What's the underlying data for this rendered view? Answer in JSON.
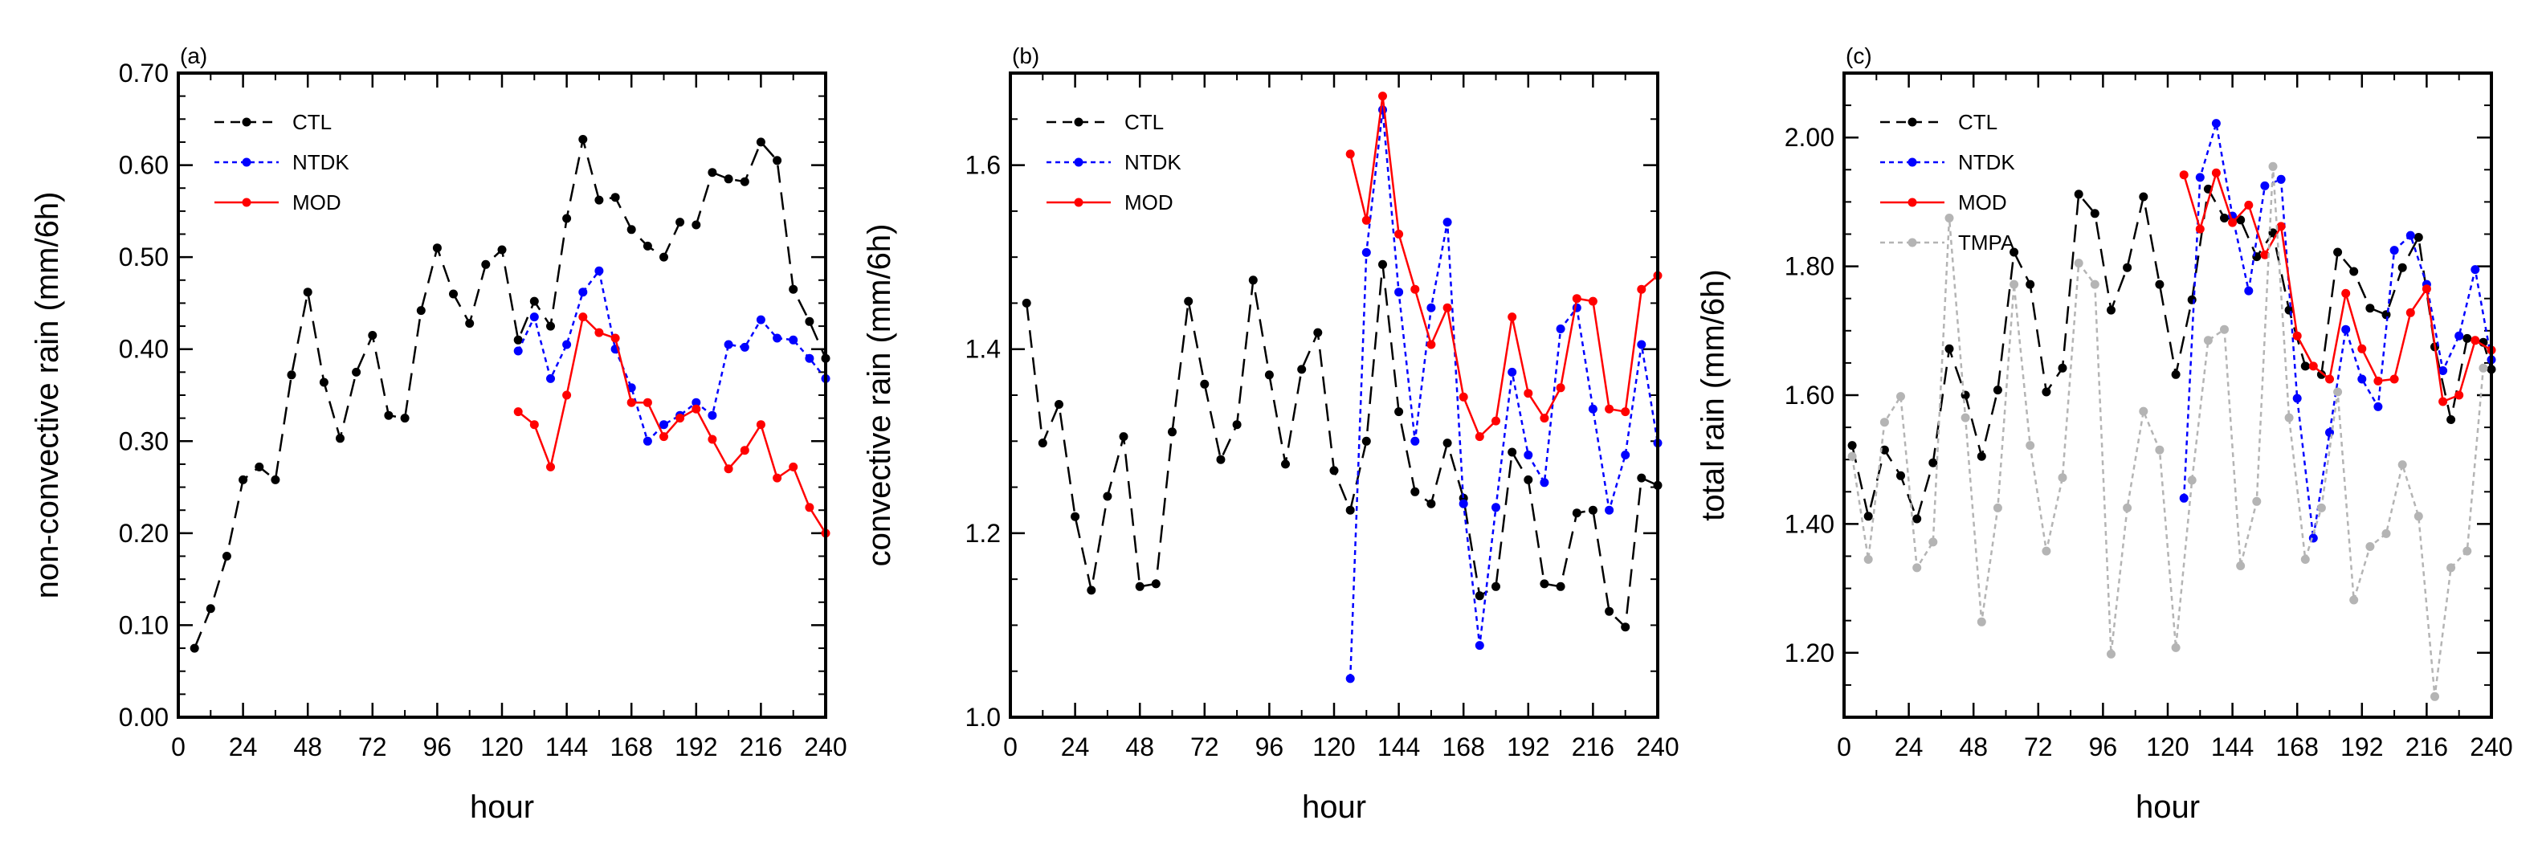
{
  "chart_data": [
    {
      "type": "line",
      "panel_label": "(a)",
      "xlabel": "hour",
      "ylabel": "non-convective rain (mm/6h)",
      "xlim": [
        0,
        240
      ],
      "ylim": [
        0.0,
        0.7
      ],
      "xticks": [
        0,
        24,
        48,
        72,
        96,
        120,
        144,
        168,
        192,
        216,
        240
      ],
      "xtick_labels": [
        "0",
        "24",
        "48",
        "72",
        "96",
        "120",
        "144",
        "168",
        "192",
        "216",
        "240"
      ],
      "yticks": [
        0.0,
        0.1,
        0.2,
        0.3,
        0.4,
        0.5,
        0.6,
        0.7
      ],
      "ytick_labels": [
        "0.00",
        "0.10",
        "0.20",
        "0.30",
        "0.40",
        "0.50",
        "0.60",
        "0.70"
      ],
      "legend_position": "top-left",
      "series": [
        {
          "name": "CTL",
          "color": "#000000",
          "dash": "long-dash",
          "x": [
            6,
            12,
            18,
            24,
            30,
            36,
            42,
            48,
            54,
            60,
            66,
            72,
            78,
            84,
            90,
            96,
            102,
            108,
            114,
            120,
            126,
            132,
            138,
            144,
            150,
            156,
            162,
            168,
            174,
            180,
            186,
            192,
            198,
            204,
            210,
            216,
            222,
            228,
            234,
            240
          ],
          "values": [
            0.075,
            0.118,
            0.175,
            0.258,
            0.272,
            0.258,
            0.372,
            0.462,
            0.364,
            0.303,
            0.375,
            0.415,
            0.328,
            0.325,
            0.442,
            0.51,
            0.46,
            0.428,
            0.492,
            0.508,
            0.41,
            0.452,
            0.425,
            0.542,
            0.628,
            0.562,
            0.565,
            0.53,
            0.512,
            0.5,
            0.538,
            0.535,
            0.592,
            0.585,
            0.582,
            0.625,
            0.605,
            0.465,
            0.43,
            0.39
          ]
        },
        {
          "name": "NTDK",
          "color": "#0000ff",
          "dash": "dotted",
          "x": [
            126,
            132,
            138,
            144,
            150,
            156,
            162,
            168,
            174,
            180,
            186,
            192,
            198,
            204,
            210,
            216,
            222,
            228,
            234,
            240
          ],
          "values": [
            0.398,
            0.435,
            0.368,
            0.405,
            0.462,
            0.485,
            0.4,
            0.358,
            0.3,
            0.318,
            0.328,
            0.342,
            0.328,
            0.405,
            0.402,
            0.432,
            0.412,
            0.41,
            0.39,
            0.368
          ]
        },
        {
          "name": "MOD",
          "color": "#ff0000",
          "dash": "solid",
          "x": [
            126,
            132,
            138,
            144,
            150,
            156,
            162,
            168,
            174,
            180,
            186,
            192,
            198,
            204,
            210,
            216,
            222,
            228,
            234,
            240
          ],
          "values": [
            0.332,
            0.318,
            0.272,
            0.35,
            0.435,
            0.418,
            0.412,
            0.342,
            0.342,
            0.305,
            0.325,
            0.335,
            0.302,
            0.27,
            0.29,
            0.318,
            0.26,
            0.272,
            0.228,
            0.2
          ]
        }
      ]
    },
    {
      "type": "line",
      "panel_label": "(b)",
      "xlabel": "hour",
      "ylabel": "convective rain (mm/6h)",
      "xlim": [
        0,
        240
      ],
      "ylim": [
        1.0,
        1.7
      ],
      "xticks": [
        0,
        24,
        48,
        72,
        96,
        120,
        144,
        168,
        192,
        216,
        240
      ],
      "xtick_labels": [
        "0",
        "24",
        "48",
        "72",
        "96",
        "120",
        "144",
        "168",
        "192",
        "216",
        "240"
      ],
      "yticks": [
        1.0,
        1.2,
        1.4,
        1.6
      ],
      "ytick_labels": [
        "1.0",
        "1.2",
        "1.4",
        "1.6"
      ],
      "legend_position": "top-left",
      "series": [
        {
          "name": "CTL",
          "color": "#000000",
          "dash": "long-dash",
          "x": [
            6,
            12,
            18,
            24,
            30,
            36,
            42,
            48,
            54,
            60,
            66,
            72,
            78,
            84,
            90,
            96,
            102,
            108,
            114,
            120,
            126,
            132,
            138,
            144,
            150,
            156,
            162,
            168,
            174,
            180,
            186,
            192,
            198,
            204,
            210,
            216,
            222,
            228,
            234,
            240
          ],
          "values": [
            1.45,
            1.298,
            1.34,
            1.218,
            1.138,
            1.24,
            1.305,
            1.142,
            1.145,
            1.31,
            1.452,
            1.362,
            1.28,
            1.318,
            1.475,
            1.372,
            1.275,
            1.378,
            1.418,
            1.268,
            1.225,
            1.3,
            1.492,
            1.332,
            1.245,
            1.232,
            1.298,
            1.238,
            1.132,
            1.142,
            1.288,
            1.258,
            1.145,
            1.142,
            1.222,
            1.225,
            1.115,
            1.098,
            1.26,
            1.252
          ]
        },
        {
          "name": "NTDK",
          "color": "#0000ff",
          "dash": "dotted",
          "x": [
            126,
            132,
            138,
            144,
            150,
            156,
            162,
            168,
            174,
            180,
            186,
            192,
            198,
            204,
            210,
            216,
            222,
            228,
            234,
            240
          ],
          "values": [
            1.042,
            1.505,
            1.66,
            1.462,
            1.3,
            1.445,
            1.538,
            1.232,
            1.078,
            1.228,
            1.375,
            1.285,
            1.255,
            1.422,
            1.445,
            1.335,
            1.225,
            1.285,
            1.405,
            1.298
          ]
        },
        {
          "name": "MOD",
          "color": "#ff0000",
          "dash": "solid",
          "x": [
            126,
            132,
            138,
            144,
            150,
            156,
            162,
            168,
            174,
            180,
            186,
            192,
            198,
            204,
            210,
            216,
            222,
            228,
            234,
            240
          ],
          "values": [
            1.612,
            1.54,
            1.675,
            1.525,
            1.465,
            1.405,
            1.445,
            1.348,
            1.305,
            1.322,
            1.435,
            1.352,
            1.325,
            1.358,
            1.455,
            1.452,
            1.335,
            1.332,
            1.465,
            1.48
          ]
        }
      ]
    },
    {
      "type": "line",
      "panel_label": "(c)",
      "xlabel": "hour",
      "ylabel": "total rain (mm/6h)",
      "xlim": [
        0,
        240
      ],
      "ylim": [
        1.1,
        2.1
      ],
      "xticks": [
        0,
        24,
        48,
        72,
        96,
        120,
        144,
        168,
        192,
        216,
        240
      ],
      "xtick_labels": [
        "0",
        "24",
        "48",
        "72",
        "96",
        "120",
        "144",
        "168",
        "192",
        "216",
        "240"
      ],
      "yticks": [
        1.2,
        1.4,
        1.6,
        1.8,
        2.0
      ],
      "ytick_labels": [
        "1.20",
        "1.40",
        "1.60",
        "1.80",
        "2.00"
      ],
      "legend_position": "top-left",
      "series": [
        {
          "name": "CTL",
          "color": "#000000",
          "dash": "long-dash",
          "x": [
            3,
            9,
            15,
            21,
            27,
            33,
            39,
            45,
            51,
            57,
            63,
            69,
            75,
            81,
            87,
            93,
            99,
            105,
            111,
            117,
            123,
            129,
            135,
            141,
            147,
            153,
            159,
            165,
            171,
            177,
            183,
            189,
            195,
            201,
            207,
            213,
            219,
            225,
            231,
            237,
            240
          ],
          "values": [
            1.522,
            1.412,
            1.515,
            1.475,
            1.408,
            1.495,
            1.672,
            1.6,
            1.505,
            1.608,
            1.822,
            1.772,
            1.605,
            1.642,
            1.912,
            1.882,
            1.732,
            1.798,
            1.908,
            1.772,
            1.632,
            1.748,
            1.92,
            1.875,
            1.872,
            1.815,
            1.852,
            1.732,
            1.645,
            1.632,
            1.822,
            1.792,
            1.735,
            1.725,
            1.798,
            1.845,
            1.675,
            1.562,
            1.688,
            1.682,
            1.64
          ]
        },
        {
          "name": "NTDK",
          "color": "#0000ff",
          "dash": "dotted",
          "x": [
            126,
            132,
            138,
            144,
            150,
            156,
            162,
            168,
            174,
            180,
            186,
            192,
            198,
            204,
            210,
            216,
            222,
            228,
            234,
            240
          ],
          "values": [
            1.44,
            1.938,
            2.022,
            1.878,
            1.762,
            1.925,
            1.935,
            1.595,
            1.378,
            1.542,
            1.702,
            1.625,
            1.582,
            1.825,
            1.848,
            1.772,
            1.638,
            1.692,
            1.795,
            1.655
          ]
        },
        {
          "name": "MOD",
          "color": "#ff0000",
          "dash": "solid",
          "x": [
            126,
            132,
            138,
            144,
            150,
            156,
            162,
            168,
            174,
            180,
            186,
            192,
            198,
            204,
            210,
            216,
            222,
            228,
            234,
            240
          ],
          "values": [
            1.942,
            1.858,
            1.945,
            1.868,
            1.895,
            1.818,
            1.862,
            1.692,
            1.645,
            1.625,
            1.758,
            1.672,
            1.622,
            1.625,
            1.728,
            1.765,
            1.59,
            1.6,
            1.685,
            1.67
          ]
        },
        {
          "name": "TMPA",
          "color": "#b4b4b4",
          "dash": "dotted",
          "x": [
            3,
            9,
            15,
            21,
            27,
            33,
            39,
            45,
            51,
            57,
            63,
            69,
            75,
            81,
            87,
            93,
            99,
            105,
            111,
            117,
            123,
            129,
            135,
            141,
            147,
            153,
            159,
            165,
            171,
            177,
            183,
            189,
            195,
            201,
            207,
            213,
            219,
            225,
            231,
            237
          ],
          "values": [
            1.505,
            1.345,
            1.558,
            1.598,
            1.332,
            1.372,
            1.875,
            1.565,
            1.248,
            1.425,
            1.772,
            1.522,
            1.358,
            1.472,
            1.805,
            1.772,
            1.198,
            1.425,
            1.575,
            1.515,
            1.208,
            1.468,
            1.685,
            1.702,
            1.335,
            1.435,
            1.955,
            1.565,
            1.345,
            1.425,
            1.605,
            1.282,
            1.365,
            1.385,
            1.492,
            1.412,
            1.132,
            1.332,
            1.358,
            1.642
          ]
        }
      ]
    }
  ]
}
